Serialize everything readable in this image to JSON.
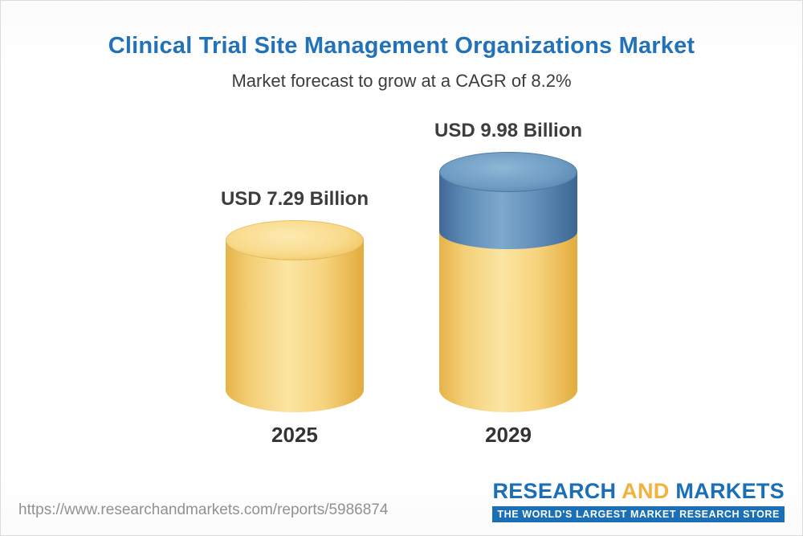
{
  "header": {
    "title": "Clinical Trial Site Management Organizations Market",
    "subtitle": "Market forecast to grow at a CAGR of 8.2%"
  },
  "chart_data": {
    "type": "bar",
    "title": "Clinical Trial Site Management Organizations Market",
    "subtitle": "Market forecast to grow at a CAGR of 8.2%",
    "cagr_percent": 8.2,
    "unit": "USD Billion",
    "categories": [
      "2025",
      "2029"
    ],
    "values": [
      7.29,
      9.98
    ],
    "value_labels": [
      "USD 7.29 Billion",
      "USD 9.98 Billion"
    ],
    "segments": [
      {
        "category": "2025",
        "base": 7.29,
        "growth": 0
      },
      {
        "category": "2029",
        "base": 7.29,
        "growth": 2.69
      }
    ],
    "ylim": [
      0,
      10
    ],
    "grid": false,
    "legend": "none",
    "colors": {
      "base_segment": "#f5cf72",
      "growth_segment": "#6f9dc4",
      "title_text": "#2272b9",
      "label_text": "#3d3d3d"
    }
  },
  "footer": {
    "url": "https://www.researchandmarkets.com/reports/5986874",
    "logo": {
      "research": "RESEARCH",
      "and": "AND",
      "markets": "MARKETS",
      "tagline": "THE WORLD'S LARGEST MARKET RESEARCH STORE"
    }
  }
}
